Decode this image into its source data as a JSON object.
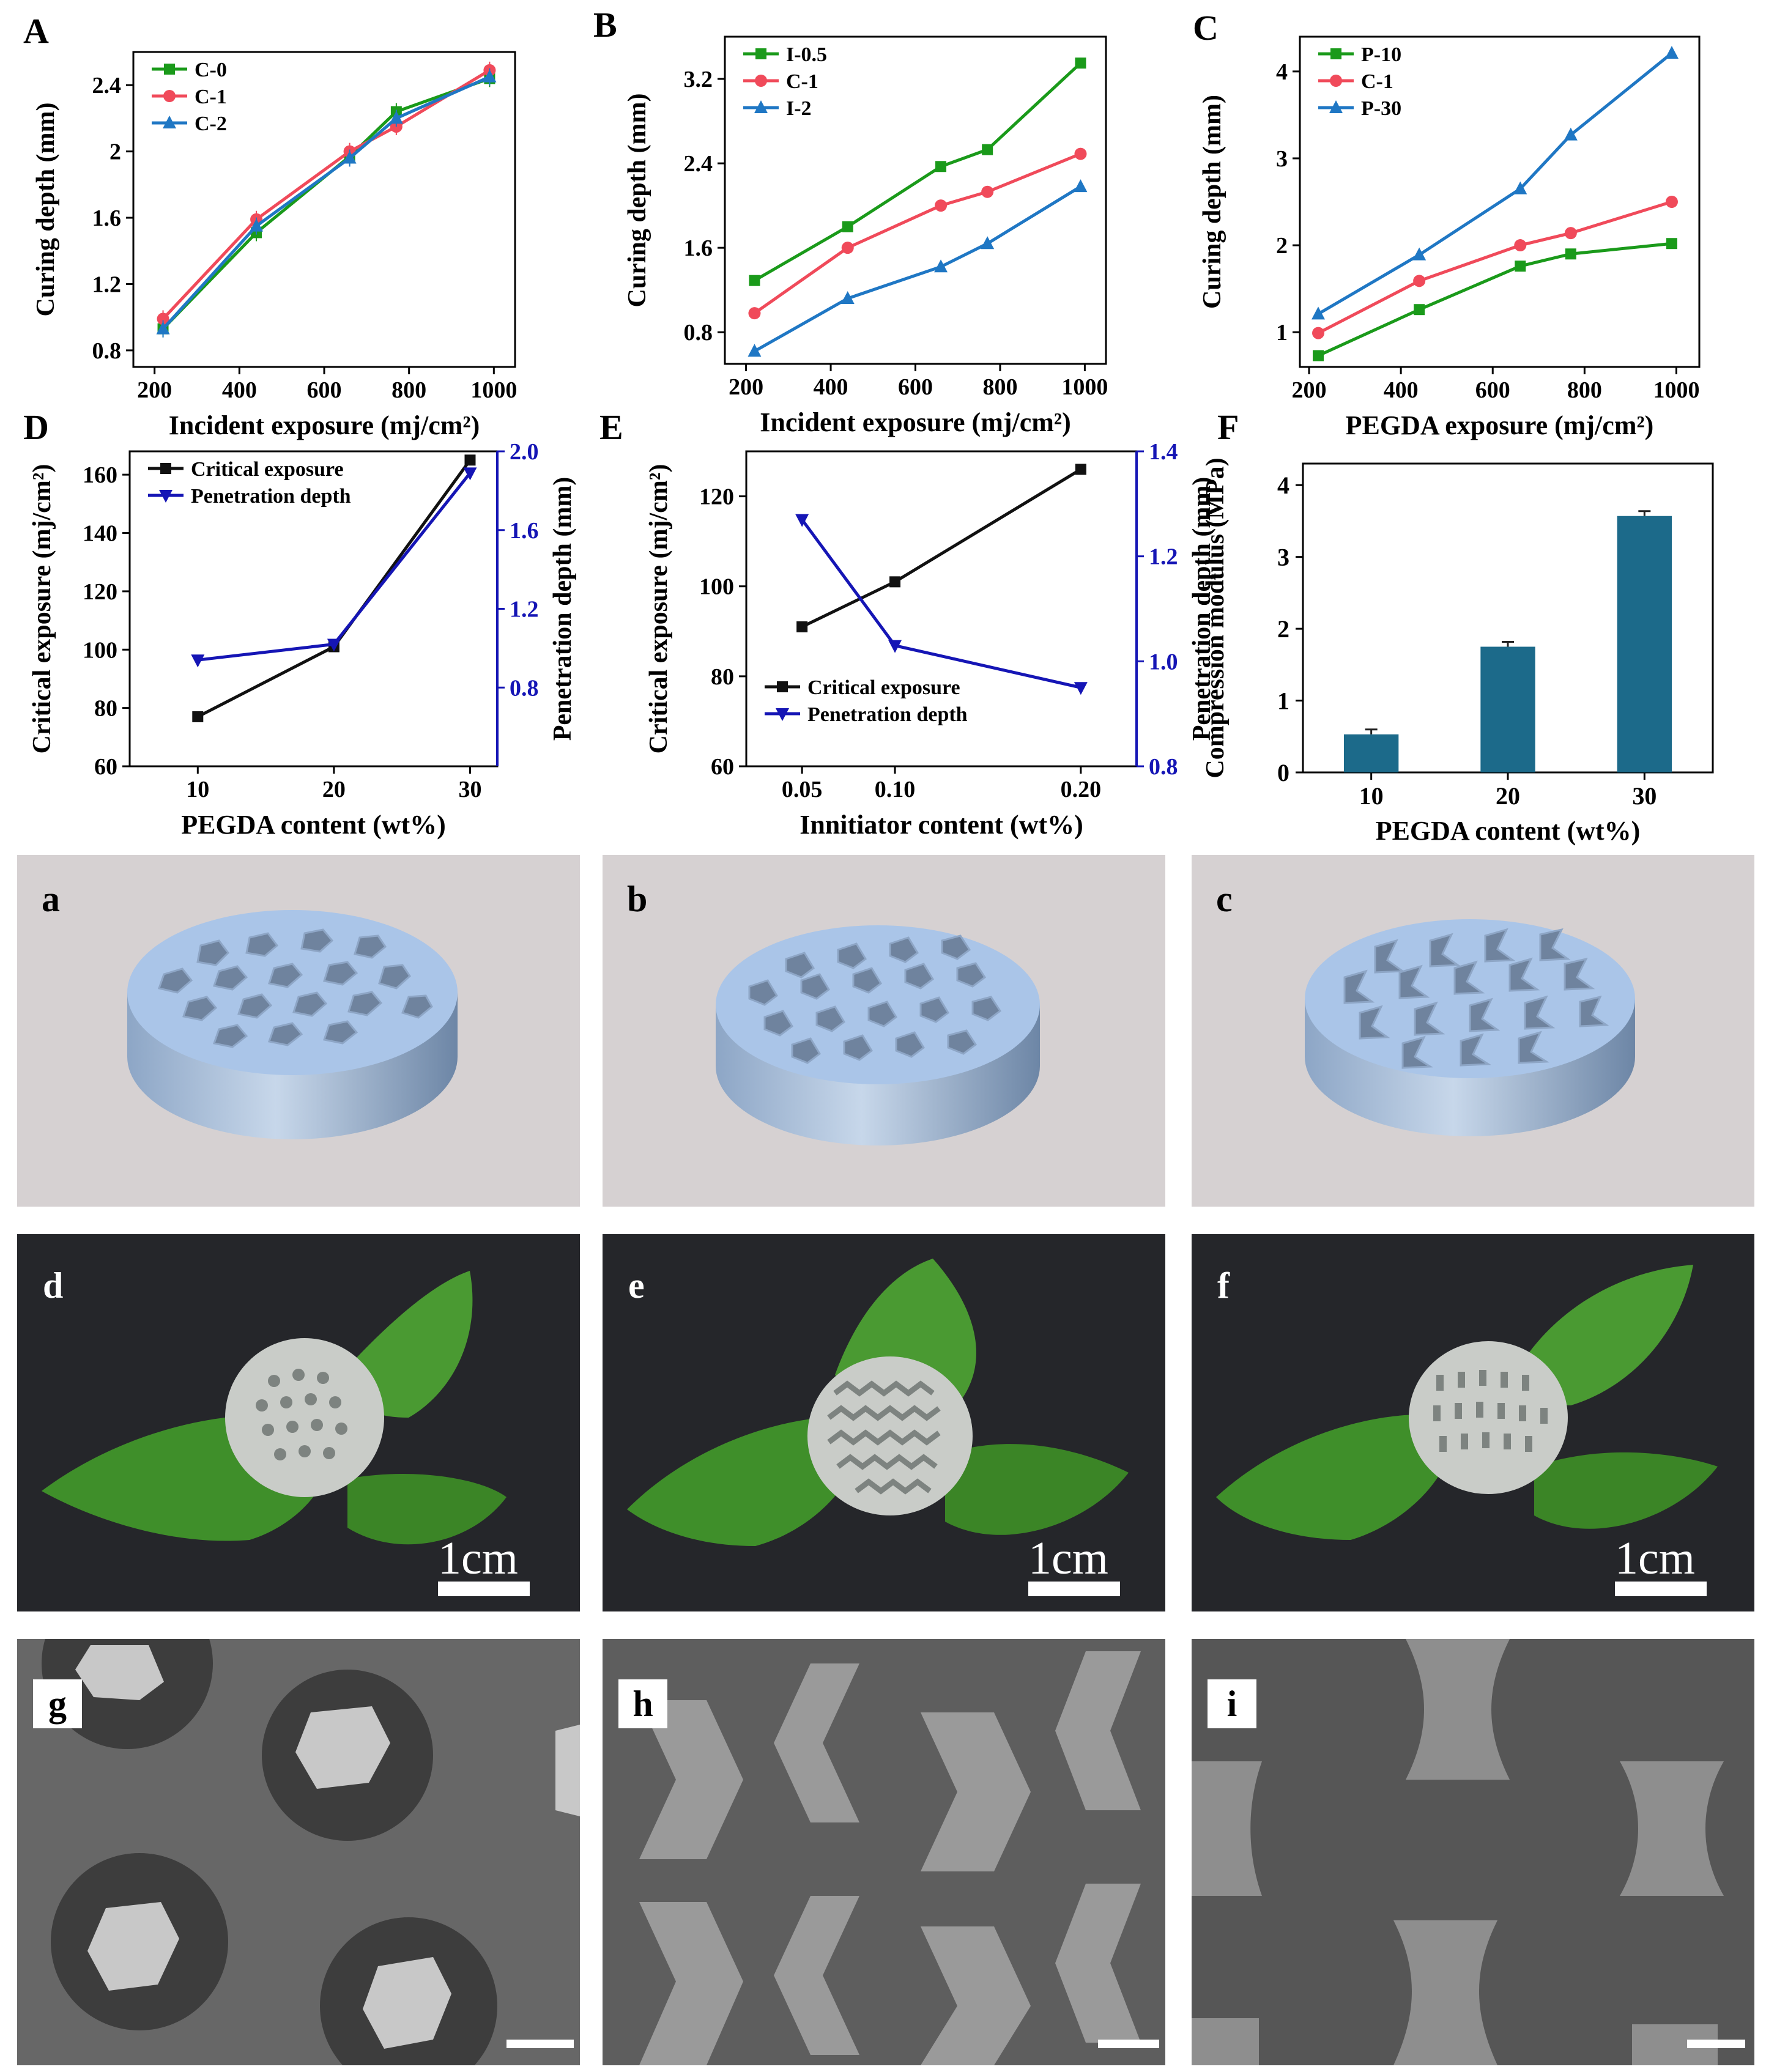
{
  "figure": {
    "panel_letters": {
      "a": "a",
      "b": "b",
      "c": "c",
      "d": "d",
      "e": "e",
      "f": "f",
      "g": "g",
      "h": "h",
      "i": "i"
    },
    "photo_scale": "1cm"
  },
  "chart_data": [
    {
      "id": "A",
      "panel_label": "A",
      "type": "line",
      "xlabel": "Incident exposure (mj/cm²)",
      "ylabel": "Curing depth (mm)",
      "xlim": [
        150,
        1050
      ],
      "ylim": [
        0.7,
        2.6
      ],
      "xticks": [
        200,
        400,
        600,
        800,
        1000
      ],
      "yticks": [
        0.8,
        1.2,
        1.6,
        2.0,
        2.4
      ],
      "x": [
        220,
        440,
        660,
        770,
        990
      ],
      "legend": "top-left",
      "error_bars": true,
      "series": [
        {
          "name": "C-0",
          "color": "#1a9a1a",
          "marker": "square",
          "values": [
            0.93,
            1.51,
            1.97,
            2.24,
            2.44
          ]
        },
        {
          "name": "C-1",
          "color": "#f04a5a",
          "marker": "circle",
          "values": [
            0.99,
            1.59,
            2.0,
            2.15,
            2.49
          ]
        },
        {
          "name": "C-2",
          "color": "#1f77c4",
          "marker": "triangle",
          "values": [
            0.93,
            1.55,
            1.96,
            2.2,
            2.45
          ]
        }
      ]
    },
    {
      "id": "B",
      "panel_label": "B",
      "type": "line",
      "xlabel": "Incident exposure (mj/cm²)",
      "ylabel": "Curing depth (mm)",
      "xlim": [
        150,
        1050
      ],
      "ylim": [
        0.5,
        3.6
      ],
      "xticks": [
        200,
        400,
        600,
        800,
        1000
      ],
      "yticks": [
        0.8,
        1.6,
        2.4,
        3.2
      ],
      "x": [
        220,
        440,
        660,
        770,
        990
      ],
      "legend": "top-left",
      "series": [
        {
          "name": "I-0.5",
          "color": "#1a9a1a",
          "marker": "square",
          "values": [
            1.29,
            1.8,
            2.37,
            2.53,
            3.35
          ]
        },
        {
          "name": "C-1",
          "color": "#f04a5a",
          "marker": "circle",
          "values": [
            0.98,
            1.6,
            2.0,
            2.13,
            2.49
          ]
        },
        {
          "name": "I-2",
          "color": "#1f77c4",
          "marker": "triangle",
          "values": [
            0.62,
            1.12,
            1.42,
            1.64,
            2.18
          ]
        }
      ]
    },
    {
      "id": "C",
      "panel_label": "C",
      "type": "line",
      "xlabel": "PEGDA exposure (mj/cm²)",
      "ylabel": "Curing depth (mm)",
      "xlim": [
        180,
        1050
      ],
      "ylim": [
        0.6,
        4.4
      ],
      "xticks": [
        200,
        400,
        600,
        800,
        1000
      ],
      "yticks": [
        1,
        2,
        3,
        4
      ],
      "x": [
        220,
        440,
        660,
        770,
        990
      ],
      "legend": "top-left",
      "series": [
        {
          "name": "P-10",
          "color": "#1a9a1a",
          "marker": "square",
          "values": [
            0.73,
            1.26,
            1.76,
            1.9,
            2.02
          ]
        },
        {
          "name": "C-1",
          "color": "#f04a5a",
          "marker": "circle",
          "values": [
            0.99,
            1.59,
            2.0,
            2.14,
            2.5
          ]
        },
        {
          "name": "P-30",
          "color": "#1f77c4",
          "marker": "triangle",
          "values": [
            1.21,
            1.89,
            2.65,
            3.27,
            4.21
          ]
        }
      ]
    },
    {
      "id": "D",
      "panel_label": "D",
      "type": "line",
      "xlabel": "PEGDA content (wt%)",
      "ylabel": "Critical exposure (mj/cm²)",
      "ylabel_right": "Penetration depth (mm)",
      "xlim": [
        5,
        32
      ],
      "ylim": [
        60,
        168
      ],
      "ylim_right": [
        0.4,
        2.0
      ],
      "xticks": [
        10,
        20,
        30
      ],
      "yticks": [
        60,
        80,
        100,
        120,
        140,
        160
      ],
      "yticks_right": [
        0.8,
        1.2,
        1.6,
        2.0
      ],
      "x": [
        10,
        20,
        30
      ],
      "legend": "top-left",
      "series": [
        {
          "name": "Critical exposure",
          "axis": "left",
          "color": "#111111",
          "marker": "square",
          "values": [
            77,
            101,
            165
          ]
        },
        {
          "name": "Penetration depth",
          "axis": "right",
          "color": "#1515b5",
          "marker": "triangle-down",
          "values": [
            0.94,
            1.02,
            1.89
          ]
        }
      ]
    },
    {
      "id": "E",
      "panel_label": "E",
      "type": "line",
      "xlabel": "Innitiator content (wt%)",
      "ylabel": "Critical exposure (mj/cm²)",
      "ylabel_right": "Penetration depth (mm)",
      "xlim": [
        0.02,
        0.23
      ],
      "ylim": [
        60,
        130
      ],
      "ylim_right": [
        0.8,
        1.4
      ],
      "xticks": [
        0.05,
        0.1,
        0.2
      ],
      "xtick_positions": [
        0.05,
        0.1,
        0.2
      ],
      "yticks": [
        60,
        80,
        100,
        120
      ],
      "yticks_right": [
        0.8,
        1.0,
        1.2,
        1.4
      ],
      "x": [
        0.05,
        0.1,
        0.2
      ],
      "legend": "bottom-left",
      "series": [
        {
          "name": "Critical exposure",
          "axis": "left",
          "color": "#111111",
          "marker": "square",
          "values": [
            91,
            101,
            126
          ]
        },
        {
          "name": "Penetration depth",
          "axis": "right",
          "color": "#1515b5",
          "marker": "triangle-down",
          "values": [
            1.27,
            1.03,
            0.95
          ]
        }
      ]
    },
    {
      "id": "F",
      "panel_label": "F",
      "type": "bar",
      "xlabel": "PEGDA content (wt%)",
      "ylabel": "Compression modulus (MPa)",
      "categories": [
        "10",
        "20",
        "30"
      ],
      "values": [
        0.53,
        1.75,
        3.57
      ],
      "ylim": [
        0,
        4.3
      ],
      "yticks": [
        0,
        1,
        2,
        3,
        4
      ],
      "color": "#1c6a8a"
    }
  ]
}
